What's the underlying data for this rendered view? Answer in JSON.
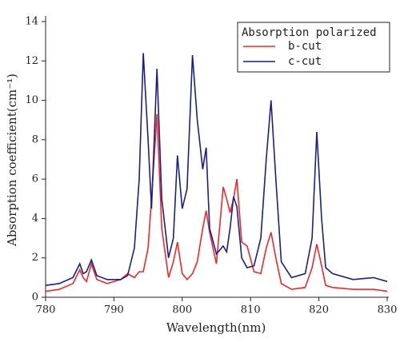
{
  "chart_data": {
    "type": "line",
    "xlabel": "Wavelength(nm)",
    "ylabel": "Absorption coefficient(cm⁻¹)",
    "legend_title": "Absorption polarized",
    "legend": "upper right",
    "x": [
      780,
      782,
      784,
      785,
      785.5,
      786,
      786.7,
      787.5,
      789,
      791,
      792,
      793,
      793.7,
      794.3,
      795,
      795.5,
      796.3,
      797,
      798,
      798.7,
      799.3,
      800,
      800.7,
      801.5,
      802.2,
      803,
      803.5,
      804,
      805,
      806,
      806.5,
      807,
      807.5,
      808,
      808.7,
      809.5,
      810.5,
      811.5,
      812.3,
      813,
      813.7,
      814.5,
      816,
      818,
      819,
      819.7,
      820.4,
      821,
      822,
      825,
      828,
      830
    ],
    "series": [
      {
        "name": "b-cut",
        "color": "#f0282a",
        "values": [
          0.3,
          0.4,
          0.7,
          1.4,
          1.0,
          0.8,
          1.7,
          0.9,
          0.7,
          0.9,
          1.2,
          1.0,
          1.3,
          1.3,
          2.5,
          5.0,
          9.3,
          3.5,
          1.0,
          1.8,
          2.8,
          1.2,
          0.9,
          1.2,
          1.8,
          3.5,
          4.4,
          3.3,
          1.7,
          5.6,
          5.0,
          4.3,
          5.0,
          6.0,
          2.8,
          2.6,
          1.3,
          1.2,
          2.5,
          3.3,
          2.0,
          0.7,
          0.4,
          0.5,
          1.5,
          2.7,
          1.6,
          0.6,
          0.5,
          0.4,
          0.4,
          0.3
        ]
      },
      {
        "name": "c-cut",
        "color": "#1a1f8c",
        "values": [
          0.6,
          0.7,
          1.0,
          1.7,
          1.2,
          1.3,
          1.9,
          1.1,
          0.9,
          0.9,
          1.1,
          2.5,
          6.0,
          12.4,
          8.0,
          4.5,
          11.6,
          5.0,
          2.0,
          3.0,
          7.2,
          4.5,
          5.5,
          12.3,
          9.0,
          6.5,
          7.6,
          3.5,
          2.2,
          2.6,
          2.3,
          3.5,
          5.1,
          4.6,
          2.0,
          1.5,
          1.6,
          3.0,
          7.0,
          10.0,
          6.0,
          1.8,
          1.0,
          1.2,
          3.0,
          8.4,
          4.0,
          1.5,
          1.2,
          0.9,
          1.0,
          0.8
        ]
      }
    ],
    "xlim": [
      780,
      830
    ],
    "xticks": [
      780,
      790,
      800,
      810,
      820,
      830
    ],
    "ylim": [
      0,
      14
    ],
    "yticks": [
      0,
      2,
      4,
      6,
      8,
      10,
      12,
      14
    ]
  }
}
